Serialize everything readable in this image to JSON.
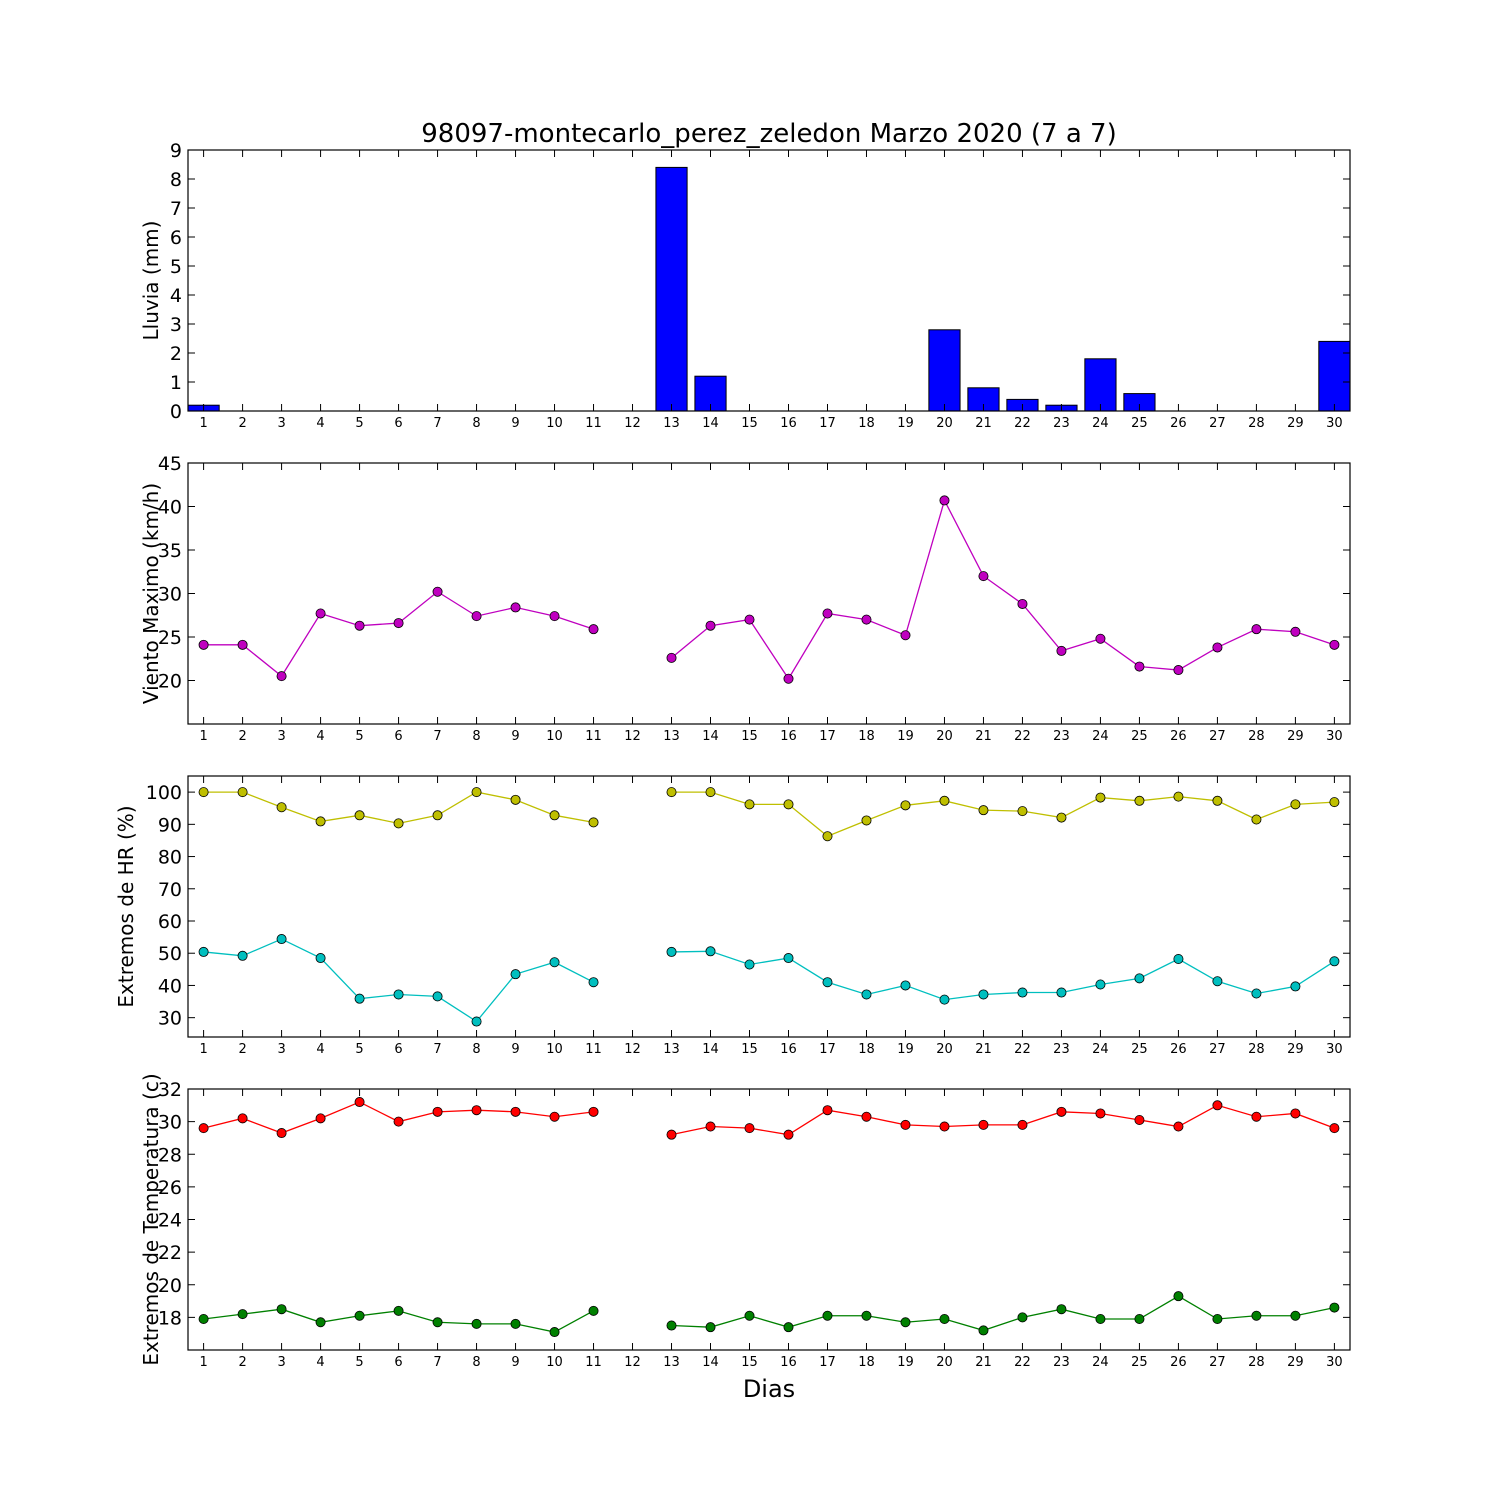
{
  "title": "98097-montecarlo_perez_zeledon Marzo 2020  (7 a 7)",
  "xlabel": "Dias",
  "chart_data": [
    {
      "type": "bar",
      "ylabel": "Lluvia (mm)",
      "ylim": [
        0,
        9
      ],
      "yticks": [
        0,
        1,
        2,
        3,
        4,
        5,
        6,
        7,
        8,
        9
      ],
      "categories": [
        "1",
        "2",
        "3",
        "4",
        "5",
        "6",
        "7",
        "8",
        "9",
        "10",
        "11",
        "12",
        "13",
        "14",
        "15",
        "16",
        "17",
        "18",
        "19",
        "20",
        "21",
        "22",
        "23",
        "24",
        "25",
        "26",
        "27",
        "28",
        "29",
        "30"
      ],
      "series": [
        {
          "color": "#0000ff",
          "values": [
            0.2,
            0,
            0,
            0,
            0,
            0,
            0,
            0,
            0,
            0,
            0,
            null,
            8.4,
            1.2,
            0,
            0,
            0,
            0,
            0,
            2.8,
            0.8,
            0.4,
            0.2,
            1.8,
            0.6,
            0,
            0,
            0,
            0,
            2.4
          ]
        }
      ]
    },
    {
      "type": "line",
      "ylabel": "Viento Maximo (km/h)",
      "ylim": [
        15,
        45
      ],
      "yticks": [
        20,
        25,
        30,
        35,
        40,
        45
      ],
      "categories": [
        "1",
        "2",
        "3",
        "4",
        "5",
        "6",
        "7",
        "8",
        "9",
        "10",
        "11",
        "12",
        "13",
        "14",
        "15",
        "16",
        "17",
        "18",
        "19",
        "20",
        "21",
        "22",
        "23",
        "24",
        "25",
        "26",
        "27",
        "28",
        "29",
        "30"
      ],
      "series": [
        {
          "color": "#bf00bf",
          "values": [
            24.1,
            24.1,
            20.5,
            27.7,
            26.3,
            26.6,
            30.2,
            27.4,
            28.4,
            27.4,
            25.9,
            null,
            22.6,
            26.3,
            27.0,
            20.2,
            27.7,
            27.0,
            25.2,
            40.7,
            32.0,
            28.8,
            23.4,
            24.8,
            21.6,
            21.2,
            23.8,
            25.9,
            25.6,
            24.1
          ]
        }
      ]
    },
    {
      "type": "line",
      "ylabel": "Extremos de HR (%)",
      "ylim": [
        24,
        105
      ],
      "yticks": [
        30,
        40,
        50,
        60,
        70,
        80,
        90,
        100
      ],
      "categories": [
        "1",
        "2",
        "3",
        "4",
        "5",
        "6",
        "7",
        "8",
        "9",
        "10",
        "11",
        "12",
        "13",
        "14",
        "15",
        "16",
        "17",
        "18",
        "19",
        "20",
        "21",
        "22",
        "23",
        "24",
        "25",
        "26",
        "27",
        "28",
        "29",
        "30"
      ],
      "series": [
        {
          "color": "#bfbf00",
          "values": [
            100,
            100,
            95.3,
            90.9,
            92.8,
            90.3,
            92.8,
            100,
            97.6,
            92.8,
            90.6,
            null,
            100,
            100,
            96.2,
            96.2,
            86.3,
            91.2,
            95.9,
            97.3,
            94.4,
            94.1,
            92.1,
            98.3,
            97.3,
            98.6,
            97.3,
            91.5,
            96.2,
            96.9
          ]
        },
        {
          "color": "#00bfbf",
          "values": [
            50.4,
            49.2,
            54.4,
            48.5,
            35.9,
            37.2,
            36.6,
            28.8,
            43.5,
            47.2,
            41.0,
            null,
            50.4,
            50.6,
            46.5,
            48.5,
            41.0,
            37.2,
            40.0,
            35.6,
            37.2,
            37.8,
            37.8,
            40.3,
            42.2,
            48.2,
            41.3,
            37.5,
            39.7,
            47.5
          ]
        }
      ]
    },
    {
      "type": "line",
      "ylabel": "Extremos de Temperatura (c)",
      "ylim": [
        16,
        32
      ],
      "yticks": [
        18,
        20,
        22,
        24,
        26,
        28,
        30,
        32
      ],
      "categories": [
        "1",
        "2",
        "3",
        "4",
        "5",
        "6",
        "7",
        "8",
        "9",
        "10",
        "11",
        "12",
        "13",
        "14",
        "15",
        "16",
        "17",
        "18",
        "19",
        "20",
        "21",
        "22",
        "23",
        "24",
        "25",
        "26",
        "27",
        "28",
        "29",
        "30"
      ],
      "series": [
        {
          "color": "#ff0000",
          "values": [
            29.6,
            30.2,
            29.3,
            30.2,
            31.2,
            30.0,
            30.6,
            30.7,
            30.6,
            30.3,
            30.6,
            null,
            29.2,
            29.7,
            29.6,
            29.2,
            30.7,
            30.3,
            29.8,
            29.7,
            29.8,
            29.8,
            30.6,
            30.5,
            30.1,
            29.7,
            31.0,
            30.3,
            30.5,
            29.6
          ]
        },
        {
          "color": "#008000",
          "values": [
            17.9,
            18.2,
            18.5,
            17.7,
            18.1,
            18.4,
            17.7,
            17.6,
            17.6,
            17.1,
            18.4,
            null,
            17.5,
            17.4,
            18.1,
            17.4,
            18.1,
            18.1,
            17.7,
            17.9,
            17.2,
            18.0,
            18.5,
            17.9,
            17.9,
            19.3,
            17.9,
            18.1,
            18.1,
            18.6
          ]
        }
      ]
    }
  ]
}
